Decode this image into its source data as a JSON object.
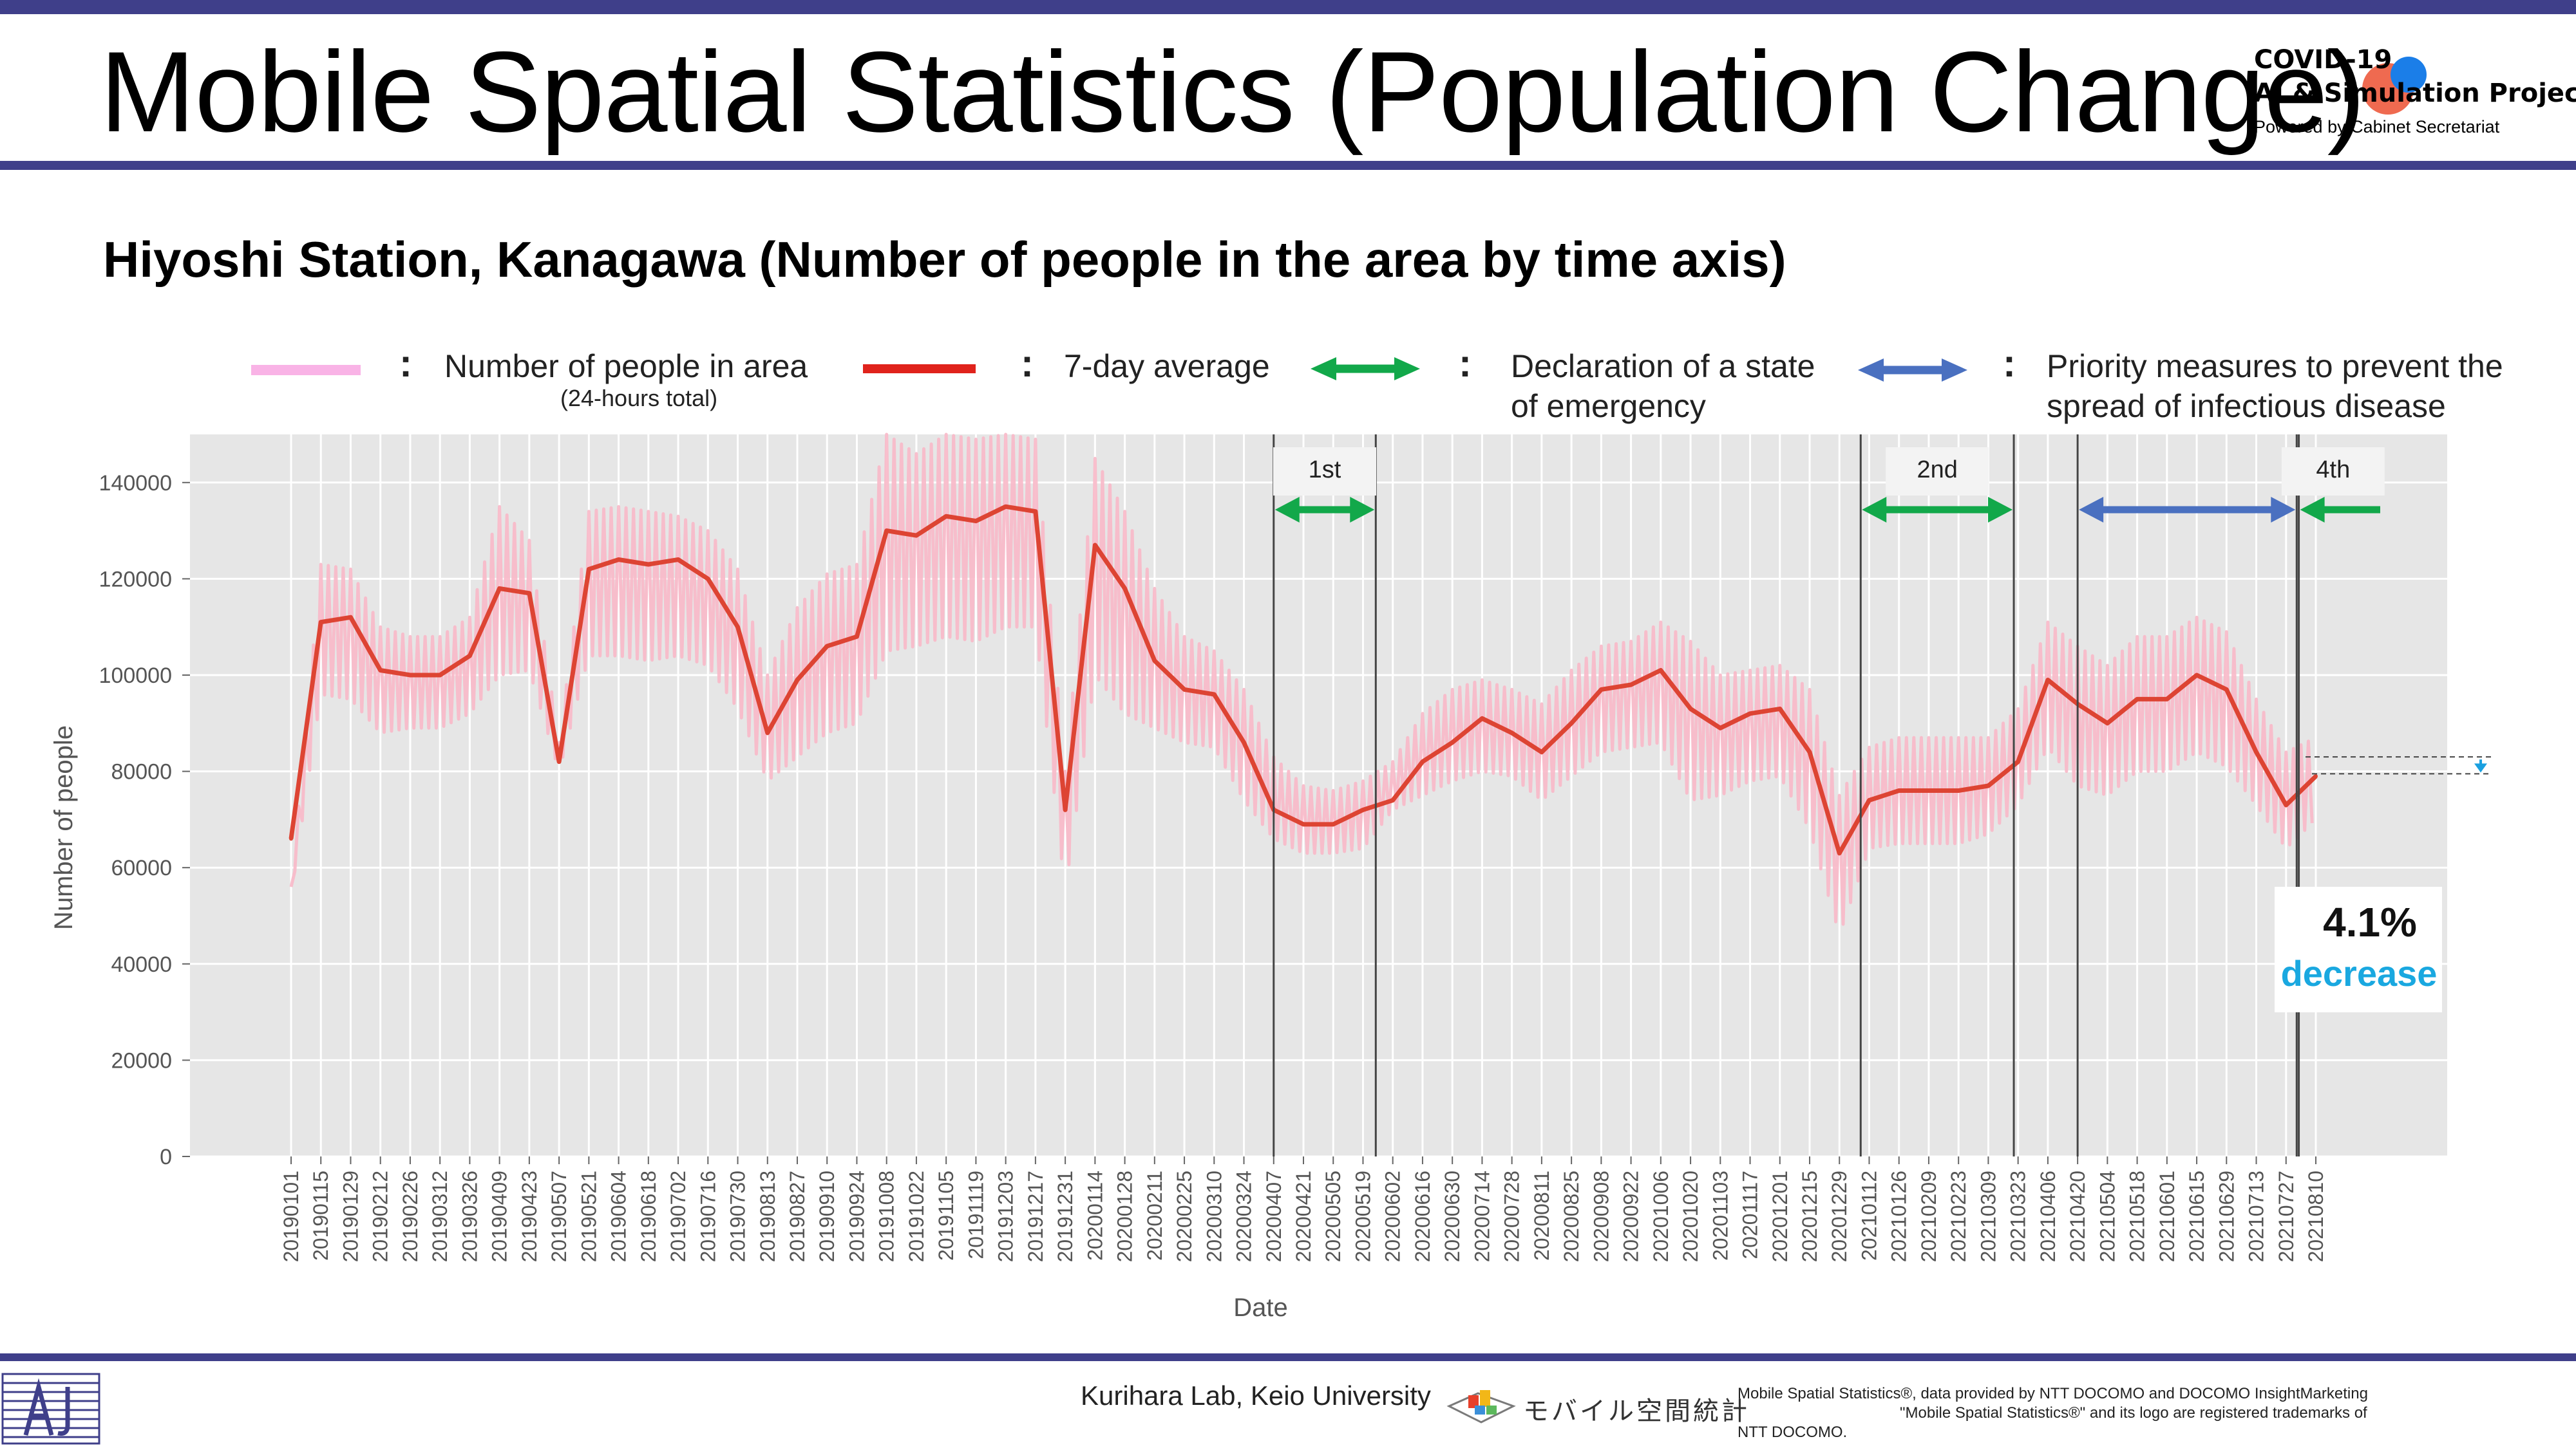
{
  "header": {
    "title": "Mobile Spatial Statistics (Population Change)",
    "logo_line1": "COVID-19",
    "logo_line2": "AI & Simulation Project",
    "logo_line3": "Powered by Cabinet Secretariat"
  },
  "subtitle": "Hiyoshi Station, Kanagawa (Number of people in the area by time axis)",
  "legend": {
    "colon": ":",
    "items": [
      {
        "label": "Number of people in area",
        "sublabel": "(24-hours total)",
        "color": "#f9b3e6"
      },
      {
        "label": "7-day average",
        "color": "#e0231c"
      },
      {
        "label_line1": "Declaration of a state",
        "label_line2": "of emergency",
        "color": "#12a84a"
      },
      {
        "label_line1": "Priority measures to prevent the",
        "label_line2": "spread of infectious disease",
        "color": "#4a70c0"
      }
    ]
  },
  "chart_data": {
    "type": "line",
    "xlabel": "Date",
    "ylabel": "Number of people",
    "ylim": [
      0,
      150000
    ],
    "yticks": [
      0,
      20000,
      40000,
      60000,
      80000,
      100000,
      120000,
      140000
    ],
    "grid": true,
    "background": "#e6e6e6",
    "x": [
      "20190101",
      "20190115",
      "20190129",
      "20190212",
      "20190226",
      "20190312",
      "20190326",
      "20190409",
      "20190423",
      "20190507",
      "20190521",
      "20190604",
      "20190618",
      "20190702",
      "20190716",
      "20190730",
      "20190813",
      "20190827",
      "20190910",
      "20190924",
      "20191008",
      "20191022",
      "20191105",
      "20191119",
      "20191203",
      "20191217",
      "20191231",
      "20200114",
      "20200128",
      "20200211",
      "20200225",
      "20200310",
      "20200324",
      "20200407",
      "20200421",
      "20200505",
      "20200519",
      "20200602",
      "20200616",
      "20200630",
      "20200714",
      "20200728",
      "20200811",
      "20200825",
      "20200908",
      "20200922",
      "20201006",
      "20201020",
      "20201103",
      "20201117",
      "20201201",
      "20201215",
      "20201229",
      "20210112",
      "20210126",
      "20210209",
      "20210223",
      "20210309",
      "20210323",
      "20210406",
      "20210420",
      "20210504",
      "20210518",
      "20210601",
      "20210615",
      "20210629",
      "20210713",
      "20210727",
      "20210810"
    ],
    "series": [
      {
        "name": "7-day average",
        "color": "#dd4433",
        "values": [
          66000,
          111000,
          112000,
          101000,
          100000,
          100000,
          104000,
          118000,
          117000,
          82000,
          122000,
          124000,
          123000,
          124000,
          120000,
          110000,
          88000,
          99000,
          106000,
          108000,
          130000,
          129000,
          133000,
          132000,
          135000,
          134000,
          72000,
          127000,
          118000,
          103000,
          97000,
          96000,
          86000,
          72000,
          69000,
          69000,
          72000,
          74000,
          82000,
          86000,
          91000,
          88000,
          84000,
          90000,
          97000,
          98000,
          101000,
          93000,
          89000,
          92000,
          93000,
          84000,
          63000,
          74000,
          76000,
          76000,
          76000,
          77000,
          82000,
          99000,
          94000,
          90000,
          95000,
          95000,
          100000,
          97000,
          84000,
          73000,
          79000
        ]
      },
      {
        "name": "Number of people in area",
        "color": "#f8b8c8",
        "values_high": [
          56000,
          123000,
          122000,
          110000,
          108000,
          108000,
          112000,
          135000,
          128000,
          86000,
          134000,
          135000,
          134000,
          133000,
          130000,
          122000,
          100000,
          114000,
          121000,
          123000,
          150000,
          146000,
          150000,
          149000,
          150000,
          149000,
          80000,
          145000,
          134000,
          118000,
          108000,
          105000,
          97000,
          83000,
          77000,
          76000,
          78000,
          82000,
          92000,
          97000,
          99000,
          97000,
          94000,
          101000,
          106000,
          107000,
          111000,
          107000,
          100000,
          101000,
          102000,
          97000,
          75000,
          85000,
          87000,
          87000,
          87000,
          87000,
          93000,
          111000,
          106000,
          102000,
          108000,
          108000,
          112000,
          109000,
          95000,
          84000,
          87000
        ],
        "values_low": [
          54000,
          96000,
          95000,
          88000,
          89000,
          89000,
          92000,
          100000,
          101000,
          80000,
          104000,
          104000,
          103000,
          104000,
          102000,
          93000,
          78000,
          83000,
          88000,
          90000,
          105000,
          106000,
          108000,
          107000,
          110000,
          110000,
          55000,
          100000,
          92000,
          89000,
          86000,
          85000,
          74000,
          66000,
          63000,
          63000,
          64000,
          72000,
          75000,
          78000,
          80000,
          79000,
          74000,
          79000,
          84000,
          85000,
          86000,
          74000,
          75000,
          78000,
          79000,
          68000,
          46000,
          64000,
          65000,
          65000,
          65000,
          67000,
          73000,
          85000,
          77000,
          75000,
          80000,
          80000,
          84000,
          81000,
          73000,
          64000,
          70000
        ]
      }
    ],
    "periods": [
      {
        "label": "1st",
        "type": "emergency",
        "start": "20200407",
        "end": "20200525"
      },
      {
        "label": "2nd",
        "type": "emergency",
        "start": "20210108",
        "end": "20210321"
      },
      {
        "label": "",
        "type": "priority",
        "start": "20210420",
        "end": "20210801"
      },
      {
        "label": "4th",
        "type": "emergency",
        "start": "20210802",
        "end": "ongoing"
      }
    ],
    "annotation": {
      "value": "4.1%",
      "text": "decrease"
    }
  },
  "footer": {
    "lab": "Kurihara Lab, Keio University",
    "msm_logo_text": "モバイル空間統計",
    "credit_line1": "Mobile Spatial Statistics®, data provided by NTT DOCOMO and DOCOMO InsightMarketing",
    "credit_line2": "\"Mobile Spatial Statistics®\" and its logo are registered trademarks of",
    "credit_line3": "NTT DOCOMO."
  }
}
